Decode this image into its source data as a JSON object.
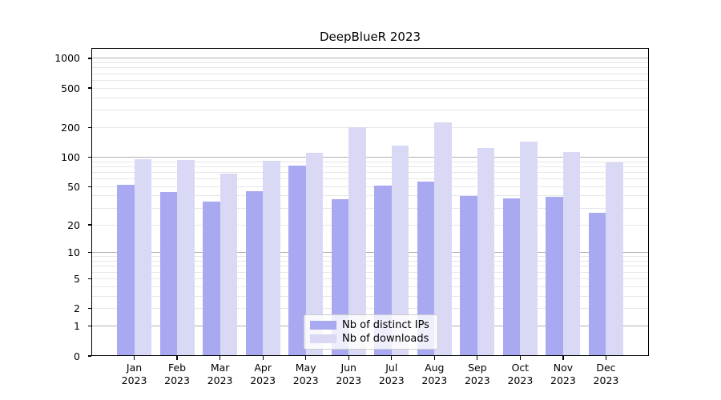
{
  "chart_data": {
    "type": "bar",
    "title": "DeepBlueR 2023",
    "xlabel": "",
    "ylabel": "",
    "yscale": "log1p",
    "ylim": [
      0,
      1270
    ],
    "yticks": [
      0,
      1,
      2,
      5,
      10,
      20,
      50,
      100,
      200,
      500,
      1000
    ],
    "categories": [
      "Jan 2023",
      "Feb 2023",
      "Mar 2023",
      "Apr 2023",
      "May 2023",
      "Jun 2023",
      "Jul 2023",
      "Aug 2023",
      "Sep 2023",
      "Oct 2023",
      "Nov 2023",
      "Dec 2023"
    ],
    "series": [
      {
        "name": "Nb of distinct IPs",
        "color": "#a9a9f1",
        "values": [
          52,
          44,
          35,
          45,
          82,
          37,
          51,
          56,
          40,
          38,
          39,
          27
        ]
      },
      {
        "name": "Nb of downloads",
        "color": "#d9d9f6",
        "values": [
          95,
          93,
          68,
          91,
          110,
          200,
          130,
          224,
          125,
          143,
          112,
          88
        ]
      }
    ],
    "grid": {
      "major": [
        1,
        10,
        100,
        1000
      ],
      "minor": [
        2,
        3,
        4,
        5,
        6,
        7,
        8,
        9,
        20,
        30,
        40,
        50,
        60,
        70,
        80,
        90,
        200,
        300,
        400,
        500,
        600,
        700,
        800,
        900
      ],
      "major_color": "#b0b0b0",
      "minor_color": "#e7e7e7"
    },
    "legend_position": "lower center"
  }
}
